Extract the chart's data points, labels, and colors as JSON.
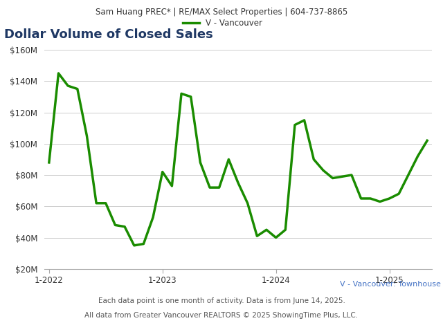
{
  "header": "Sam Huang PREC* | RE/MAX Select Properties | 604-737-8865",
  "title": "Dollar Volume of Closed Sales",
  "legend_label": "V - Vancouver",
  "subtitle_right": "V - Vancouver: Townhouse",
  "footnote1": "Each data point is one month of activity. Data is from June 14, 2025.",
  "footnote2": "All data from Greater Vancouver REALTORS © 2025 ShowingTime Plus, LLC.",
  "title_color": "#1f3864",
  "line_color": "#1a8c00",
  "line_width": 2.5,
  "background_color": "#ffffff",
  "header_bg_color": "#e8e8e8",
  "plot_bg_color": "#ffffff",
  "grid_color": "#cccccc",
  "ylim": [
    20000000,
    160000000
  ],
  "yticks": [
    20000000,
    40000000,
    60000000,
    80000000,
    100000000,
    120000000,
    140000000,
    160000000
  ],
  "x_tick_labels": [
    "1-2022",
    "1-2023",
    "1-2024",
    "1-2025"
  ],
  "values": [
    88000000,
    145000000,
    137000000,
    135000000,
    105000000,
    62000000,
    62000000,
    48000000,
    47000000,
    35000000,
    36000000,
    53000000,
    82000000,
    73000000,
    132000000,
    130000000,
    88000000,
    72000000,
    72000000,
    90000000,
    75000000,
    62000000,
    41000000,
    45000000,
    40000000,
    45000000,
    112000000,
    115000000,
    90000000,
    83000000,
    78000000,
    79000000,
    80000000,
    65000000,
    65000000,
    63000000,
    65000000,
    68000000,
    80000000,
    92000000,
    102000000
  ]
}
